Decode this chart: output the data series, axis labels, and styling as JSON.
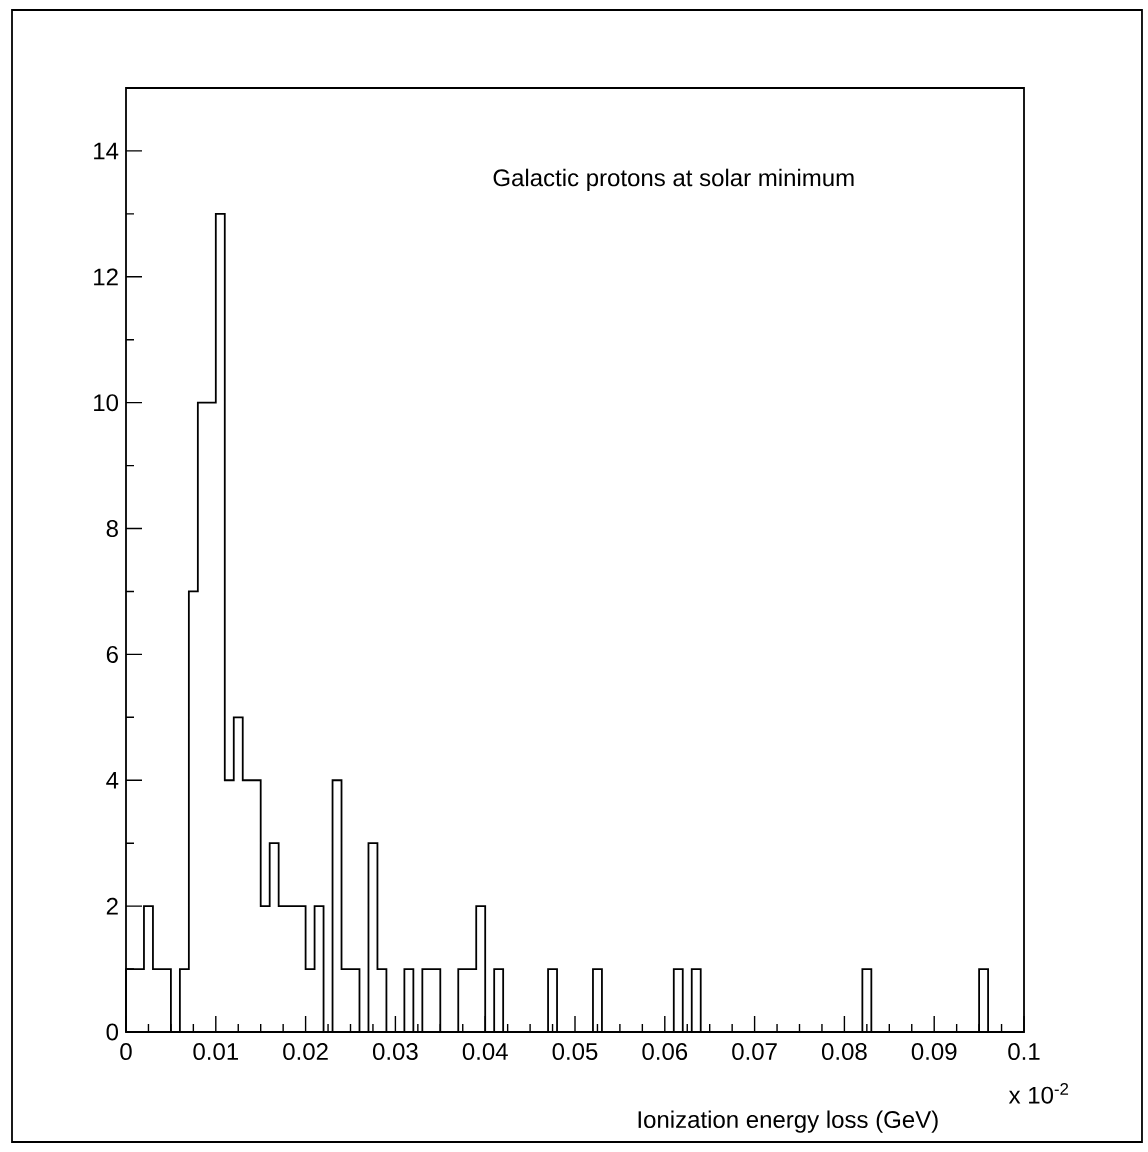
{
  "chart_data": {
    "type": "histogram",
    "title": "Galactic protons at solar minimum",
    "xlabel": "Ionization energy loss (GeV)",
    "annotations": [
      "x 10$^{-2}$"
    ],
    "color": "#000000",
    "bins": [
      0,
      0.001,
      0.002,
      0.003,
      0.004,
      0.005,
      0.006,
      0.007,
      0.008,
      0.009,
      0.01,
      0.011,
      0.012,
      0.013,
      0.014,
      0.015,
      0.016,
      0.017,
      0.018,
      0.019,
      0.02,
      0.021,
      0.022,
      0.023,
      0.024,
      0.025,
      0.026,
      0.027,
      0.028,
      0.029,
      0.03,
      0.031,
      0.032,
      0.033,
      0.034,
      0.035,
      0.036,
      0.037,
      0.038,
      0.039,
      0.04,
      0.041,
      0.042,
      0.043,
      0.044,
      0.045,
      0.046,
      0.047,
      0.048,
      0.049,
      0.05,
      0.051,
      0.052,
      0.053,
      0.054,
      0.055,
      0.056,
      0.057,
      0.058,
      0.059,
      0.06,
      0.061,
      0.062,
      0.063,
      0.064,
      0.065,
      0.066,
      0.067,
      0.068,
      0.069,
      0.07,
      0.071,
      0.072,
      0.073,
      0.074,
      0.075,
      0.076,
      0.077,
      0.078,
      0.079,
      0.08,
      0.081,
      0.082,
      0.083,
      0.084,
      0.085,
      0.086,
      0.087,
      0.088,
      0.089,
      0.09,
      0.091,
      0.092,
      0.093,
      0.094,
      0.095,
      0.096,
      0.097,
      0.098,
      0.099,
      0.1
    ],
    "values": [
      1,
      1,
      2,
      1,
      1,
      0,
      1,
      7,
      10,
      10,
      13,
      4,
      5,
      4,
      4,
      2,
      3,
      2,
      2,
      2,
      1,
      2,
      0,
      4,
      1,
      1,
      0,
      3,
      1,
      0,
      0,
      1,
      0,
      1,
      1,
      0,
      0,
      1,
      1,
      2,
      0,
      1,
      0,
      0,
      0,
      0,
      0,
      1,
      0,
      0,
      0,
      0,
      1,
      0,
      0,
      0,
      0,
      0,
      0,
      0,
      0,
      1,
      0,
      1,
      0,
      0,
      0,
      0,
      0,
      0,
      0,
      0,
      0,
      0,
      0,
      0,
      0,
      0,
      0,
      0,
      0,
      0,
      1,
      0,
      0,
      0,
      0,
      0,
      0,
      0,
      0,
      0,
      0,
      0,
      0,
      1,
      0,
      0,
      0,
      0
    ],
    "xlim": [
      0,
      0.1
    ],
    "xticks": [
      0,
      0.01,
      0.02,
      0.03,
      0.04,
      0.05,
      0.06,
      0.07,
      0.08,
      0.09,
      0.1
    ],
    "ylim": [
      0,
      15
    ],
    "yticks": [
      0,
      2,
      4,
      6,
      8,
      10,
      12,
      14
    ]
  }
}
